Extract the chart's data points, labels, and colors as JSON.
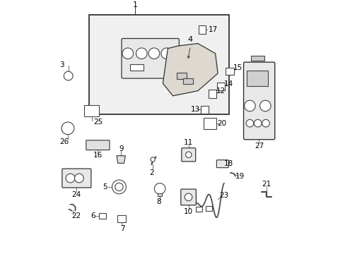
{
  "title": "",
  "background_color": "#ffffff",
  "border_color": "#000000",
  "line_color": "#333333",
  "component_color": "#555555",
  "label_color": "#000000",
  "label_fontsize": 7.5,
  "fig_width": 4.89,
  "fig_height": 3.6,
  "dpi": 100
}
